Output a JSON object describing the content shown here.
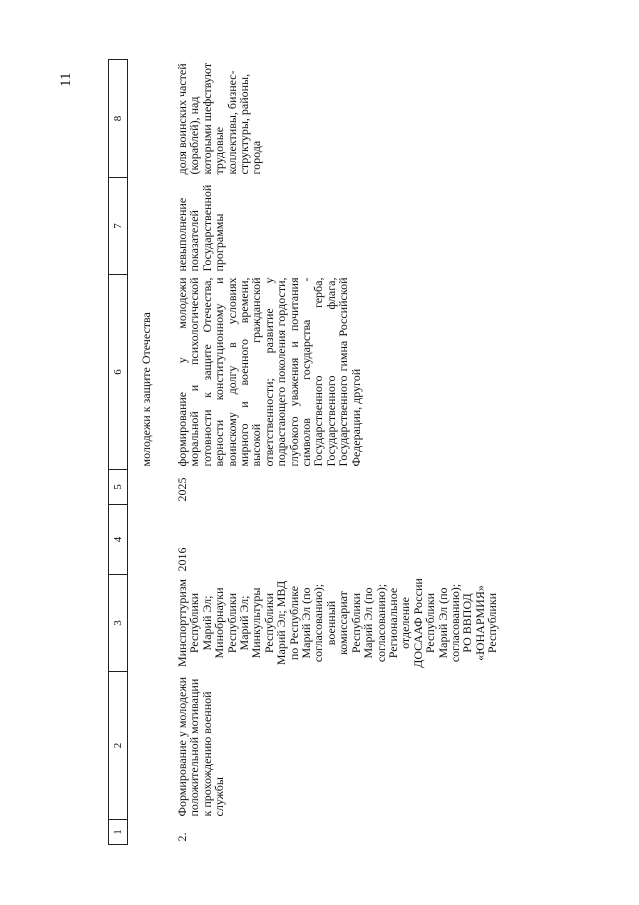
{
  "page_number": "11",
  "table": {
    "header": [
      "1",
      "2",
      "3",
      "4",
      "5",
      "6",
      "7",
      "8"
    ],
    "continuation": [
      "",
      "",
      "",
      "",
      "",
      "молодежи к защите Отечества",
      "",
      ""
    ],
    "rows": [
      [
        "2.",
        "Формирование у молодежи положительной мотивации к прохождению военной службы",
        "Минспорттуризм Республики Марий Эл; Минобрнауки Республики Марий Эл; Минкультуры Республики Марий Эл; МВД по Республике Марий Эл (по согласованию); военный комиссариат Республики Марий Эл (по согласованию); Региональное отделение ДОСААФ России Республики Марий Эл (по согласованию); РО ВВПОД «ЮНАРМИЯ» Республики",
        "2016",
        "2025",
        "формирование у молодежи моральной и психологической готовности к защите Отечества, верности конституционному и воинскому долгу в условиях мирного и военного времени, высокой гражданской ответственности; развитие у подрастающего поколения гордости, глубокого уважения и почитания символов государства - Государственного герба, Государственного флага, Государственного гимна Российской Федерации, другой",
        "невыполнение показателей Государственной программы",
        "доля воинских частей (кораблей), над которыми шефствуют трудовые коллективы, бизнес-структуры, районы, города"
      ]
    ]
  }
}
